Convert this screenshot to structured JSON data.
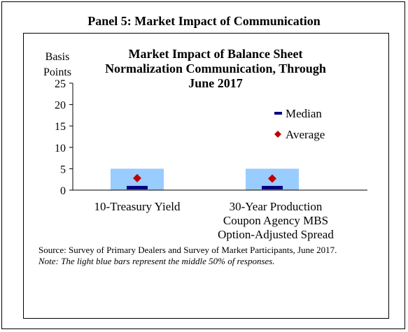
{
  "panel": {
    "title": "Panel 5: Market Impact  of Communication"
  },
  "chart_data": {
    "type": "box",
    "title_lines": [
      "Market Impact  of Balance Sheet",
      "Normalization  Communication, Through",
      "June 2017"
    ],
    "ylabel_lines": [
      "Basis",
      "Points"
    ],
    "ylim": [
      0,
      25
    ],
    "yticks": [
      0,
      5,
      10,
      15,
      20,
      25
    ],
    "categories": [
      {
        "label_lines": [
          "10-Treasury Yield"
        ]
      },
      {
        "label_lines": [
          "30-Year Production",
          "Coupon Agency MBS",
          "Option-Adjusted Spread"
        ]
      }
    ],
    "series": [
      {
        "name": "Interquartile range",
        "type": "range",
        "low": [
          0,
          0
        ],
        "high": [
          5,
          5
        ]
      },
      {
        "name": "Median",
        "type": "line-marker",
        "values": [
          0.5,
          0.5
        ]
      },
      {
        "name": "Average",
        "type": "diamond-marker",
        "values": [
          2.8,
          2.7
        ]
      }
    ],
    "legend": {
      "position": "right",
      "entries": [
        "Median",
        "Average"
      ]
    },
    "colors": {
      "range": "#99CCFF",
      "median": "#000080",
      "average": "#C00000"
    },
    "grid": false
  },
  "footnotes": {
    "source": "Source: Survey of Primary Dealers and Survey of Market Participants, June 2017.",
    "note": "Note: The light blue bars represent the middle 50% of responses."
  }
}
